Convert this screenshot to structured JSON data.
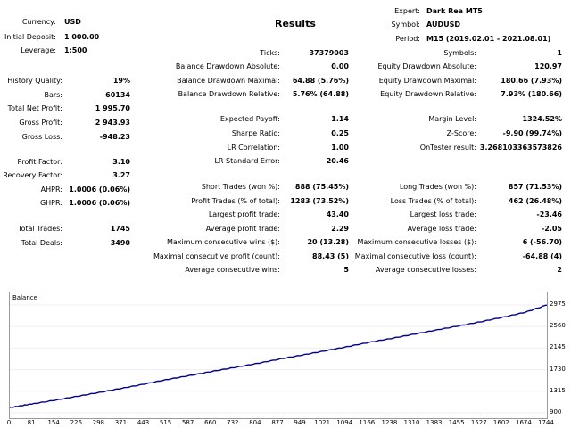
{
  "report_title": "Results",
  "header_left": {
    "currency_label": "Currency:",
    "currency": "USD",
    "deposit_label": "Initial Deposit:",
    "deposit": "1 000.00",
    "leverage_label": "Leverage:",
    "leverage": "1:500"
  },
  "header_right": {
    "expert_label": "Expert:",
    "expert": "Dark Rea MT5",
    "symbol_label": "Symbol:",
    "symbol": "AUDUSD",
    "period_label": "Period:",
    "period": "M15 (2019.02.01 - 2021.08.01)"
  },
  "left_col": {
    "history_quality_label": "History Quality:",
    "history_quality": "19%",
    "bars_label": "Bars:",
    "bars": "60134",
    "total_net_profit_label": "Total Net Profit:",
    "total_net_profit": "1 995.70",
    "gross_profit_label": "Gross Profit:",
    "gross_profit": "2 943.93",
    "gross_loss_label": "Gross Loss:",
    "gross_loss": "-948.23",
    "profit_factor_label": "Profit Factor:",
    "profit_factor": "3.10",
    "recovery_factor_label": "Recovery Factor:",
    "recovery_factor": "3.27",
    "ahpr_label": "AHPR:",
    "ahpr": "1.0006 (0.06%)",
    "ghpr_label": "GHPR:",
    "ghpr": "1.0006 (0.06%)",
    "total_trades_label": "Total Trades:",
    "total_trades": "1745",
    "total_deals_label": "Total Deals:",
    "total_deals": "3490"
  },
  "mid_col": {
    "ticks_label": "Ticks:",
    "ticks": "37379003",
    "bal_dd_abs_label": "Balance Drawdown Absolute:",
    "bal_dd_abs": "0.00",
    "bal_dd_max_label": "Balance Drawdown Maximal:",
    "bal_dd_max": "64.88 (5.76%)",
    "bal_dd_rel_label": "Balance Drawdown Relative:",
    "bal_dd_rel": "5.76% (64.88)",
    "expected_payoff_label": "Expected Payoff:",
    "expected_payoff": "1.14",
    "sharpe_label": "Sharpe Ratio:",
    "sharpe": "0.25",
    "lr_corr_label": "LR Correlation:",
    "lr_corr": "1.00",
    "lr_err_label": "LR Standard Error:",
    "lr_err": "20.46",
    "short_trades_label": "Short Trades (won %):",
    "short_trades": "888 (75.45%)",
    "profit_trades_label": "Profit Trades (% of total):",
    "profit_trades": "1283 (73.52%)",
    "largest_profit_label": "Largest profit trade:",
    "largest_profit": "43.40",
    "avg_profit_label": "Average profit trade:",
    "avg_profit": "2.29",
    "max_cons_wins_label": "Maximum consecutive wins ($):",
    "max_cons_wins": "20 (13.28)",
    "maximal_cons_profit_label": "Maximal consecutive profit (count):",
    "maximal_cons_profit": "88.43 (5)",
    "avg_cons_wins_label": "Average consecutive wins:",
    "avg_cons_wins": "5"
  },
  "right_col": {
    "symbols_label": "Symbols:",
    "symbols": "1",
    "eq_dd_abs_label": "Equity Drawdown Absolute:",
    "eq_dd_abs": "120.97",
    "eq_dd_max_label": "Equity Drawdown Maximal:",
    "eq_dd_max": "180.66 (7.93%)",
    "eq_dd_rel_label": "Equity Drawdown Relative:",
    "eq_dd_rel": "7.93% (180.66)",
    "margin_level_label": "Margin Level:",
    "margin_level": "1324.52%",
    "zscore_label": "Z-Score:",
    "zscore": "-9.90 (99.74%)",
    "ontester_label": "OnTester result:",
    "ontester": "3.268103363573826",
    "long_trades_label": "Long Trades (won %):",
    "long_trades": "857 (71.53%)",
    "loss_trades_label": "Loss Trades (% of total):",
    "loss_trades": "462 (26.48%)",
    "largest_loss_label": "Largest loss trade:",
    "largest_loss": "-23.46",
    "avg_loss_label": "Average loss trade:",
    "avg_loss": "-2.05",
    "max_cons_losses_label": "Maximum consecutive losses ($):",
    "max_cons_losses": "6 (-56.70)",
    "maximal_cons_loss_label": "Maximal consecutive loss (count):",
    "maximal_cons_loss": "-64.88 (4)",
    "avg_cons_losses_label": "Average consecutive losses:",
    "avg_cons_losses": "2"
  },
  "chart_data": {
    "type": "line",
    "title": "Balance",
    "x_ticks": [
      "0",
      "81",
      "154",
      "226",
      "298",
      "371",
      "443",
      "515",
      "587",
      "660",
      "732",
      "804",
      "877",
      "949",
      "1021",
      "1094",
      "1166",
      "1238",
      "1310",
      "1383",
      "1455",
      "1527",
      "1602",
      "1674",
      "1744"
    ],
    "y_ticks": [
      "2975",
      "2560",
      "2145",
      "1730",
      "1315",
      "900"
    ],
    "xlim": [
      0,
      1744
    ],
    "ylim": [
      900,
      2975
    ],
    "series": [
      {
        "name": "Balance",
        "color": "#00008b",
        "x": [
          0,
          40,
          81,
          154,
          226,
          298,
          371,
          443,
          515,
          587,
          660,
          732,
          804,
          877,
          949,
          1021,
          1094,
          1166,
          1238,
          1310,
          1383,
          1455,
          1527,
          1602,
          1674,
          1744
        ],
        "values": [
          1000,
          1040,
          1080,
          1150,
          1225,
          1300,
          1380,
          1460,
          1545,
          1620,
          1700,
          1775,
          1850,
          1935,
          2010,
          2090,
          2170,
          2255,
          2330,
          2410,
          2490,
          2570,
          2650,
          2740,
          2835,
          2975
        ]
      }
    ]
  }
}
